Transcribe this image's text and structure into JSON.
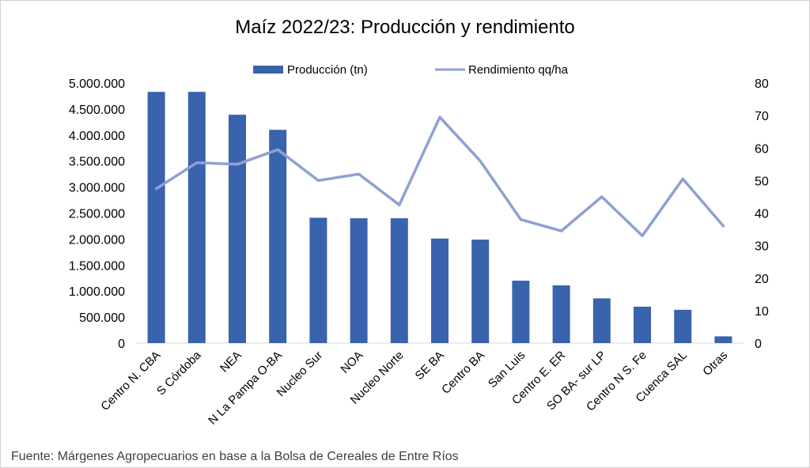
{
  "chart_data": {
    "type": "bar",
    "title": "Maíz 2022/23: Producción y rendimiento",
    "categories": [
      "Centro N. CBA",
      "S Córdoba",
      "NEA",
      "N La Pampa O-BA",
      "Nucleo Sur",
      "NOA",
      "Nucleo Norte",
      "SE BA",
      "Centro BA",
      "San Luis",
      "Centro E. ER",
      "SO BA- sur LP",
      "Centro N S. Fe",
      "Cuenca SAL",
      "Otras"
    ],
    "series": [
      {
        "name": "Producción (tn)",
        "type": "bar",
        "axis": "left",
        "color": "#3a63ad",
        "values": [
          4830000,
          4830000,
          4390000,
          4100000,
          2410000,
          2400000,
          2400000,
          2010000,
          1990000,
          1200000,
          1110000,
          860000,
          700000,
          640000,
          130000
        ]
      },
      {
        "name": "Rendimiento qq/ha",
        "type": "line",
        "axis": "right",
        "color": "#8ea0d4",
        "values": [
          47.5,
          55.5,
          55.0,
          59.5,
          50.0,
          52.0,
          42.5,
          69.5,
          56.0,
          38.0,
          34.5,
          45.0,
          33.0,
          50.5,
          36.0
        ]
      }
    ],
    "y_left": {
      "min": 0,
      "max": 5000000,
      "ticks": [
        "0",
        "500.000",
        "1.000.000",
        "1.500.000",
        "2.000.000",
        "2.500.000",
        "3.000.000",
        "3.500.000",
        "4.000.000",
        "4.500.000",
        "5.000.000"
      ]
    },
    "y_right": {
      "min": 0,
      "max": 80,
      "ticks": [
        "0",
        "10",
        "20",
        "30",
        "40",
        "50",
        "60",
        "70",
        "80"
      ]
    },
    "legend": "top",
    "grid": false
  },
  "source_note": "Fuente: Márgenes Agropecuarios en base a la Bolsa de Cereales de Entre Ríos"
}
